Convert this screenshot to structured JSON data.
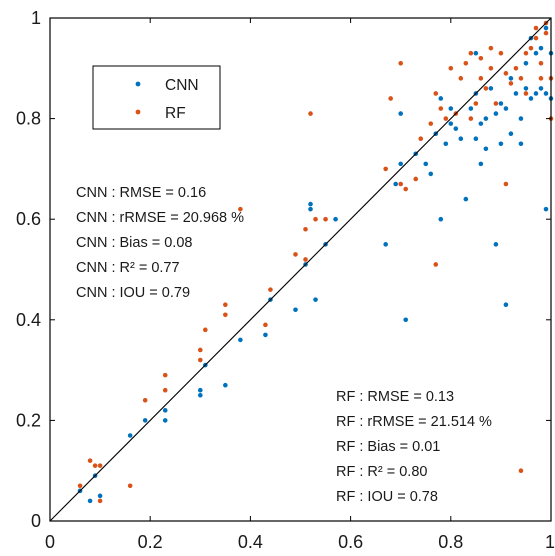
{
  "chart_data": {
    "type": "scatter",
    "title": "",
    "xlabel": "",
    "ylabel": "",
    "xlim": [
      0,
      1
    ],
    "ylim": [
      0,
      1
    ],
    "xticks": [
      "0",
      "0.2",
      "0.4",
      "0.6",
      "0.8",
      "1"
    ],
    "yticks": [
      "0",
      "0.2",
      "0.4",
      "0.6",
      "0.8",
      "1"
    ],
    "grid": false,
    "box": true,
    "reference_line": "1:1",
    "legend_position": "top-left",
    "series": [
      {
        "name": "CNN",
        "color": "#0072BD",
        "points": [
          [
            0.06,
            0.06
          ],
          [
            0.08,
            0.04
          ],
          [
            0.09,
            0.09
          ],
          [
            0.1,
            0.05
          ],
          [
            0.16,
            0.17
          ],
          [
            0.19,
            0.2
          ],
          [
            0.23,
            0.22
          ],
          [
            0.23,
            0.2
          ],
          [
            0.3,
            0.26
          ],
          [
            0.3,
            0.25
          ],
          [
            0.31,
            0.31
          ],
          [
            0.35,
            0.27
          ],
          [
            0.38,
            0.36
          ],
          [
            0.43,
            0.37
          ],
          [
            0.44,
            0.44
          ],
          [
            0.49,
            0.42
          ],
          [
            0.51,
            0.51
          ],
          [
            0.52,
            0.62
          ],
          [
            0.52,
            0.63
          ],
          [
            0.53,
            0.44
          ],
          [
            0.55,
            0.55
          ],
          [
            0.57,
            0.6
          ],
          [
            0.67,
            0.55
          ],
          [
            0.71,
            0.4
          ],
          [
            0.69,
            0.67
          ],
          [
            0.7,
            0.71
          ],
          [
            0.7,
            0.81
          ],
          [
            0.73,
            0.73
          ],
          [
            0.75,
            0.71
          ],
          [
            0.76,
            0.69
          ],
          [
            0.77,
            0.77
          ],
          [
            0.78,
            0.84
          ],
          [
            0.78,
            0.6
          ],
          [
            0.79,
            0.75
          ],
          [
            0.8,
            0.79
          ],
          [
            0.8,
            0.82
          ],
          [
            0.81,
            0.78
          ],
          [
            0.82,
            0.76
          ],
          [
            0.83,
            0.64
          ],
          [
            0.84,
            0.82
          ],
          [
            0.85,
            0.76
          ],
          [
            0.85,
            0.93
          ],
          [
            0.85,
            0.85
          ],
          [
            0.86,
            0.79
          ],
          [
            0.86,
            0.71
          ],
          [
            0.87,
            0.74
          ],
          [
            0.87,
            0.8
          ],
          [
            0.88,
            0.86
          ],
          [
            0.89,
            0.55
          ],
          [
            0.89,
            0.81
          ],
          [
            0.9,
            0.83
          ],
          [
            0.9,
            0.75
          ],
          [
            0.91,
            0.43
          ],
          [
            0.91,
            0.82
          ],
          [
            0.92,
            0.77
          ],
          [
            0.92,
            0.88
          ],
          [
            0.93,
            0.85
          ],
          [
            0.94,
            0.8
          ],
          [
            0.94,
            0.75
          ],
          [
            0.95,
            0.86
          ],
          [
            0.95,
            0.91
          ],
          [
            0.96,
            0.84
          ],
          [
            0.96,
            0.96
          ],
          [
            0.97,
            0.85
          ],
          [
            0.97,
            0.93
          ],
          [
            0.98,
            0.86
          ],
          [
            0.98,
            0.94
          ],
          [
            0.99,
            0.62
          ],
          [
            0.99,
            0.98
          ],
          [
            0.99,
            0.85
          ],
          [
            1.0,
            0.93
          ],
          [
            1.0,
            0.84
          ]
        ]
      },
      {
        "name": "RF",
        "color": "#D95319",
        "points": [
          [
            0.06,
            0.07
          ],
          [
            0.08,
            0.12
          ],
          [
            0.09,
            0.11
          ],
          [
            0.1,
            0.11
          ],
          [
            0.1,
            0.04
          ],
          [
            0.16,
            0.07
          ],
          [
            0.19,
            0.24
          ],
          [
            0.23,
            0.29
          ],
          [
            0.23,
            0.26
          ],
          [
            0.3,
            0.32
          ],
          [
            0.3,
            0.34
          ],
          [
            0.31,
            0.38
          ],
          [
            0.35,
            0.41
          ],
          [
            0.35,
            0.43
          ],
          [
            0.38,
            0.62
          ],
          [
            0.43,
            0.39
          ],
          [
            0.44,
            0.46
          ],
          [
            0.49,
            0.53
          ],
          [
            0.51,
            0.52
          ],
          [
            0.51,
            0.58
          ],
          [
            0.52,
            0.81
          ],
          [
            0.53,
            0.6
          ],
          [
            0.55,
            0.6
          ],
          [
            0.67,
            0.7
          ],
          [
            0.68,
            0.84
          ],
          [
            0.7,
            0.91
          ],
          [
            0.7,
            0.67
          ],
          [
            0.71,
            0.66
          ],
          [
            0.73,
            0.68
          ],
          [
            0.74,
            0.76
          ],
          [
            0.76,
            0.79
          ],
          [
            0.77,
            0.51
          ],
          [
            0.77,
            0.85
          ],
          [
            0.78,
            0.82
          ],
          [
            0.79,
            0.8
          ],
          [
            0.8,
            0.9
          ],
          [
            0.81,
            0.81
          ],
          [
            0.82,
            0.88
          ],
          [
            0.83,
            0.91
          ],
          [
            0.84,
            0.8
          ],
          [
            0.84,
            0.93
          ],
          [
            0.85,
            0.83
          ],
          [
            0.86,
            0.92
          ],
          [
            0.86,
            0.88
          ],
          [
            0.87,
            0.86
          ],
          [
            0.88,
            0.94
          ],
          [
            0.88,
            0.9
          ],
          [
            0.89,
            0.83
          ],
          [
            0.9,
            0.93
          ],
          [
            0.91,
            0.67
          ],
          [
            0.91,
            0.89
          ],
          [
            0.92,
            0.87
          ],
          [
            0.93,
            0.9
          ],
          [
            0.94,
            0.1
          ],
          [
            0.94,
            0.88
          ],
          [
            0.95,
            0.85
          ],
          [
            0.95,
            0.93
          ],
          [
            0.96,
            0.94
          ],
          [
            0.97,
            0.96
          ],
          [
            0.97,
            0.98
          ],
          [
            0.98,
            0.91
          ],
          [
            0.98,
            0.88
          ],
          [
            0.99,
            0.97
          ],
          [
            1.0,
            0.88
          ],
          [
            1.0,
            0.8
          ],
          [
            0.99,
            0.99
          ]
        ]
      }
    ],
    "annotations": {
      "cnn_stats": [
        "CNN : RMSE = 0.16",
        "CNN : rRMSE = 20.968 %",
        "CNN : Bias = 0.08",
        "CNN : R² = 0.77",
        "CNN : IOU = 0.79"
      ],
      "rf_stats": [
        "RF : RMSE = 0.13",
        "RF : rRMSE = 21.514 %",
        "RF : Bias = 0.01",
        "RF : R² = 0.80",
        "RF : IOU = 0.78"
      ]
    }
  }
}
